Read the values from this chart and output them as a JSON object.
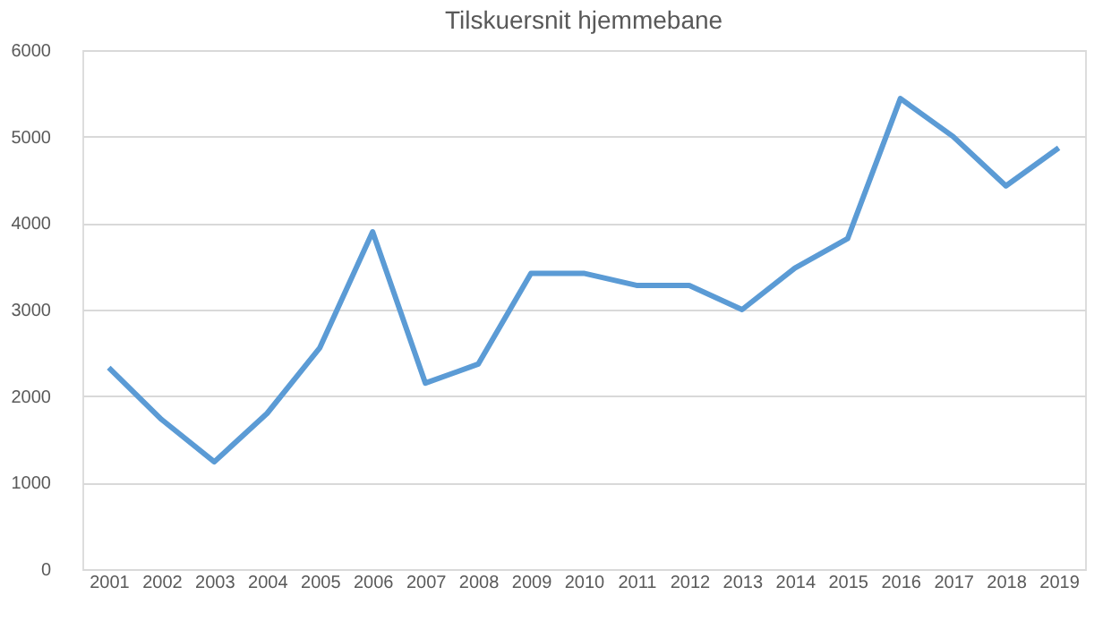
{
  "chart_data": {
    "type": "line",
    "title": "Tilskuersnit hjemmebane",
    "categories": [
      "2001",
      "2002",
      "2003",
      "2004",
      "2005",
      "2006",
      "2007",
      "2008",
      "2009",
      "2010",
      "2011",
      "2012",
      "2013",
      "2014",
      "2015",
      "2016",
      "2017",
      "2018",
      "2019"
    ],
    "series": [
      {
        "color": "#5b9bd5",
        "values": [
          2330,
          1730,
          1240,
          1800,
          2560,
          3900,
          2150,
          2370,
          3420,
          3420,
          3280,
          3280,
          3000,
          3480,
          3820,
          5440,
          5000,
          4430,
          4870
        ]
      }
    ],
    "ylim": [
      0,
      6000
    ],
    "yticks": [
      0,
      1000,
      2000,
      3000,
      4000,
      5000,
      6000
    ],
    "grid": "y",
    "marker": "none",
    "line_style": "solid"
  }
}
